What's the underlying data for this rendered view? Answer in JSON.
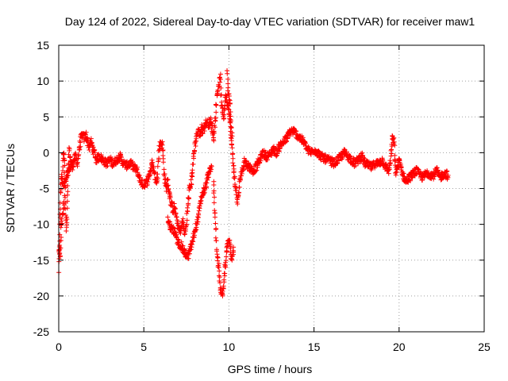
{
  "chart_data": {
    "type": "scatter",
    "title": "Day 124 of 2022, Sidereal Day-to-day VTEC variation (SDTVAR) for receiver maw1",
    "xlabel": "GPS time / hours",
    "ylabel": "SDTVAR / TECUs",
    "xlim": [
      0,
      25
    ],
    "ylim": [
      -25,
      15
    ],
    "xticks": [
      "0",
      "5",
      "10",
      "15",
      "20",
      "25"
    ],
    "yticks": [
      "15",
      "10",
      "5",
      "0",
      "-5",
      "-10",
      "-15",
      "-20",
      "-25"
    ],
    "grid": true,
    "marker": "+",
    "color": "#ff0000",
    "series": [
      {
        "name": "maw1",
        "trace": [
          [
            0.0,
            -16.5
          ],
          [
            0.05,
            -12.0
          ],
          [
            0.1,
            -6.0
          ],
          [
            0.15,
            -3.0
          ],
          [
            0.2,
            -4.5
          ],
          [
            0.25,
            -1.0
          ],
          [
            0.3,
            0.5
          ],
          [
            0.35,
            -2.0
          ],
          [
            0.4,
            -8.0
          ],
          [
            0.45,
            -11.0
          ],
          [
            0.5,
            -9.0
          ],
          [
            0.55,
            -3.5
          ],
          [
            0.6,
            0.5
          ],
          [
            0.7,
            -1.0
          ],
          [
            0.8,
            -2.0
          ],
          [
            0.9,
            -1.0
          ],
          [
            1.0,
            -0.5
          ],
          [
            1.1,
            -1.5
          ],
          [
            1.2,
            0.5
          ],
          [
            1.3,
            2.0
          ],
          [
            1.4,
            2.5
          ],
          [
            1.5,
            2.0
          ],
          [
            1.6,
            2.5
          ],
          [
            1.7,
            1.5
          ],
          [
            1.8,
            0.8
          ],
          [
            1.9,
            1.5
          ],
          [
            2.0,
            0.5
          ],
          [
            2.1,
            0.0
          ],
          [
            2.2,
            -1.0
          ],
          [
            2.4,
            -0.5
          ],
          [
            2.6,
            -1.0
          ],
          [
            2.8,
            -1.5
          ],
          [
            3.0,
            -1.0
          ],
          [
            3.2,
            -1.5
          ],
          [
            3.4,
            -1.0
          ],
          [
            3.6,
            -0.5
          ],
          [
            3.8,
            -1.5
          ],
          [
            4.0,
            -1.8
          ],
          [
            4.2,
            -1.5
          ],
          [
            4.4,
            -2.0
          ],
          [
            4.6,
            -2.5
          ],
          [
            4.8,
            -4.0
          ],
          [
            5.0,
            -4.5
          ],
          [
            5.2,
            -4.0
          ],
          [
            5.4,
            -2.5
          ],
          [
            5.5,
            -1.5
          ],
          [
            5.6,
            -2.5
          ],
          [
            5.7,
            -4.0
          ],
          [
            5.8,
            -3.5
          ],
          [
            5.9,
            0.5
          ],
          [
            6.0,
            1.5
          ],
          [
            6.1,
            1.0
          ],
          [
            6.2,
            -3.0
          ],
          [
            6.3,
            -5.0
          ],
          [
            6.4,
            -4.0
          ],
          [
            6.5,
            -5.5
          ],
          [
            6.6,
            -7.0
          ],
          [
            6.7,
            -8.0
          ],
          [
            6.8,
            -7.5
          ],
          [
            6.9,
            -9.0
          ],
          [
            7.0,
            -10.0
          ],
          [
            7.1,
            -11.0
          ],
          [
            7.2,
            -10.5
          ],
          [
            7.3,
            -9.5
          ],
          [
            7.4,
            -11.5
          ],
          [
            7.5,
            -10.0
          ],
          [
            7.6,
            -7.0
          ],
          [
            7.7,
            -5.0
          ],
          [
            7.8,
            -4.0
          ],
          [
            7.9,
            -1.0
          ],
          [
            8.0,
            1.0
          ],
          [
            8.1,
            2.5
          ],
          [
            8.2,
            3.0
          ],
          [
            8.3,
            2.5
          ],
          [
            8.4,
            3.5
          ],
          [
            8.5,
            3.0
          ],
          [
            8.6,
            4.0
          ],
          [
            8.7,
            4.2
          ],
          [
            8.8,
            4.0
          ],
          [
            8.9,
            4.5
          ],
          [
            9.0,
            3.5
          ],
          [
            9.1,
            2.0
          ],
          [
            9.2,
            4.5
          ],
          [
            9.3,
            8.0
          ],
          [
            9.4,
            9.5
          ],
          [
            9.5,
            10.5
          ],
          [
            9.55,
            7.0
          ],
          [
            9.6,
            6.0
          ],
          [
            9.7,
            5.0
          ],
          [
            9.8,
            8.0
          ],
          [
            9.9,
            7.0
          ],
          [
            10.0,
            6.0
          ],
          [
            10.1,
            3.0
          ],
          [
            10.2,
            0.0
          ],
          [
            10.3,
            -3.0
          ],
          [
            10.4,
            -5.0
          ],
          [
            10.5,
            -7.0
          ],
          [
            10.6,
            -5.0
          ],
          [
            10.7,
            -3.0
          ],
          [
            10.8,
            -2.5
          ],
          [
            10.9,
            -1.0
          ],
          [
            11.0,
            -1.5
          ],
          [
            11.2,
            -2.0
          ],
          [
            11.4,
            -2.5
          ],
          [
            11.6,
            -2.0
          ],
          [
            11.8,
            -1.0
          ],
          [
            12.0,
            0.0
          ],
          [
            12.2,
            -0.5
          ],
          [
            12.4,
            -0.3
          ],
          [
            12.6,
            0.5
          ],
          [
            12.8,
            0.0
          ],
          [
            13.0,
            1.0
          ],
          [
            13.2,
            1.5
          ],
          [
            13.4,
            2.0
          ],
          [
            13.6,
            3.0
          ],
          [
            13.8,
            3.0
          ],
          [
            14.0,
            2.5
          ],
          [
            14.2,
            2.0
          ],
          [
            14.4,
            1.5
          ],
          [
            14.6,
            0.5
          ],
          [
            14.8,
            0.0
          ],
          [
            15.0,
            0.5
          ],
          [
            15.2,
            0.0
          ],
          [
            15.4,
            -0.5
          ],
          [
            15.6,
            -0.8
          ],
          [
            15.8,
            -1.0
          ],
          [
            16.0,
            -1.2
          ],
          [
            16.2,
            -1.5
          ],
          [
            16.4,
            -1.0
          ],
          [
            16.6,
            -0.5
          ],
          [
            16.8,
            0.0
          ],
          [
            17.0,
            -0.5
          ],
          [
            17.2,
            -1.0
          ],
          [
            17.4,
            -1.5
          ],
          [
            17.6,
            -1.0
          ],
          [
            17.8,
            -0.5
          ],
          [
            18.0,
            -1.5
          ],
          [
            18.2,
            -1.8
          ],
          [
            18.4,
            -2.0
          ],
          [
            18.6,
            -1.5
          ],
          [
            18.8,
            -1.5
          ],
          [
            19.0,
            -1.0
          ],
          [
            19.2,
            -2.0
          ],
          [
            19.4,
            -2.5
          ],
          [
            19.5,
            -1.0
          ],
          [
            19.6,
            2.0
          ],
          [
            19.7,
            1.5
          ],
          [
            19.8,
            -3.0
          ],
          [
            19.9,
            -2.0
          ],
          [
            20.0,
            -1.0
          ],
          [
            20.2,
            -3.0
          ],
          [
            20.4,
            -4.0
          ],
          [
            20.6,
            -3.5
          ],
          [
            20.8,
            -3.0
          ],
          [
            21.0,
            -2.5
          ],
          [
            21.2,
            -3.0
          ],
          [
            21.4,
            -3.5
          ],
          [
            21.6,
            -2.8
          ],
          [
            21.8,
            -3.0
          ],
          [
            22.0,
            -3.2
          ],
          [
            22.2,
            -2.5
          ],
          [
            22.4,
            -3.5
          ],
          [
            22.6,
            -3.0
          ],
          [
            22.8,
            -3.0
          ],
          [
            22.9,
            -3.5
          ]
        ],
        "extra_branches": [
          [
            [
              6.4,
              -9.5
            ],
            [
              6.6,
              -10.5
            ],
            [
              6.8,
              -11.0
            ],
            [
              7.0,
              -12.5
            ],
            [
              7.2,
              -13.0
            ],
            [
              7.4,
              -14.0
            ],
            [
              7.6,
              -14.5
            ],
            [
              7.8,
              -13.0
            ],
            [
              8.0,
              -11.0
            ],
            [
              8.2,
              -9.0
            ],
            [
              8.4,
              -6.0
            ],
            [
              8.6,
              -5.0
            ],
            [
              8.8,
              -3.0
            ],
            [
              9.0,
              -2.0
            ]
          ],
          [
            [
              9.1,
              -4.0
            ],
            [
              9.2,
              -10.0
            ],
            [
              9.3,
              -14.0
            ],
            [
              9.4,
              -16.0
            ],
            [
              9.5,
              -19.0
            ],
            [
              9.6,
              -20.0
            ],
            [
              9.7,
              -18.0
            ],
            [
              9.8,
              -15.5
            ],
            [
              9.9,
              -13.0
            ],
            [
              10.0,
              -12.0
            ],
            [
              10.1,
              -14.0
            ],
            [
              10.2,
              -15.0
            ],
            [
              10.3,
              -13.0
            ]
          ],
          [
            [
              9.9,
              11.0
            ],
            [
              9.95,
              9.0
            ],
            [
              10.0,
              8.5
            ],
            [
              10.1,
              5.0
            ],
            [
              10.2,
              2.0
            ]
          ],
          [
            [
              0.0,
              -13.5
            ],
            [
              0.1,
              -14.0
            ],
            [
              0.15,
              -10.0
            ],
            [
              0.25,
              -8.5
            ],
            [
              0.35,
              -6.0
            ]
          ],
          [
            [
              0.3,
              -4.5
            ],
            [
              0.5,
              -3.0
            ],
            [
              0.7,
              -2.0
            ],
            [
              0.9,
              -1.5
            ]
          ]
        ]
      }
    ]
  }
}
